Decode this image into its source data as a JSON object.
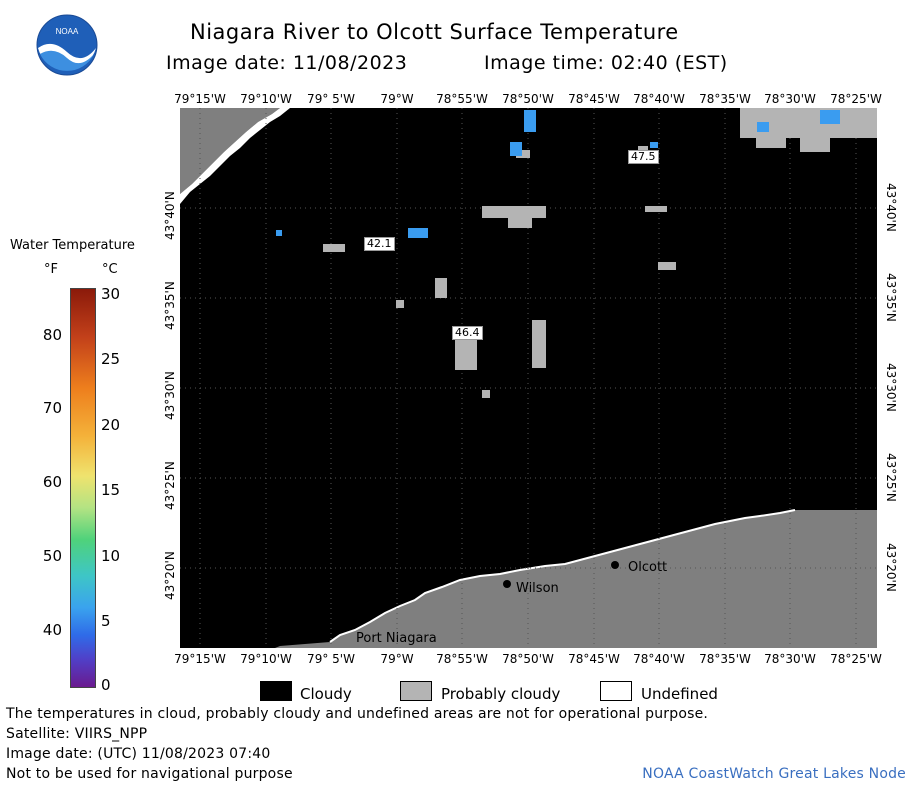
{
  "header": {
    "title": "Niagara River to Olcott Surface Temperature",
    "image_date_label": "Image date: 11/08/2023",
    "image_time_label": "Image time: 02:40 (EST)"
  },
  "logo": {
    "text": "NOAA",
    "icon": "noaa-logo-icon"
  },
  "axes": {
    "lon_labels": [
      "79°15'W",
      "79°10'W",
      "79° 5'W",
      "79°W",
      "78°55'W",
      "78°50'W",
      "78°45'W",
      "78°40'W",
      "78°35'W",
      "78°30'W",
      "78°25'W"
    ],
    "lat_labels": [
      "43°40'N",
      "43°35'N",
      "43°30'N",
      "43°25'N",
      "43°20'N"
    ]
  },
  "legend": {
    "title": "Water Temperature",
    "unit_f": "°F",
    "unit_c": "°C",
    "ticks_f": [
      "80",
      "70",
      "60",
      "50",
      "40"
    ],
    "ticks_c": [
      "30",
      "25",
      "20",
      "15",
      "10",
      "5",
      "0"
    ],
    "range_c": [
      0,
      30
    ],
    "colors": [
      "#6a1a8f",
      "#2f6be8",
      "#3ec6c6",
      "#4fd27b",
      "#efe36e",
      "#ee7f1d",
      "#8b1a0a"
    ]
  },
  "map": {
    "places": [
      "Olcott",
      "Wilson",
      "Port Niagara"
    ],
    "temperature_labels": [
      "47.5",
      "42.1",
      "46.4"
    ],
    "colors": {
      "cloudy": "#000000",
      "probably_cloudy": "#b4b4b4",
      "land": "#7f7f7f",
      "water_temp_blue": "#3a9cf0"
    }
  },
  "key": {
    "cloudy": "Cloudy",
    "probably_cloudy": "Probably cloudy",
    "undefined": "Undefined"
  },
  "footer": {
    "disclaimer": "The temperatures in cloud, probably cloudy and undefined areas are not for operational purpose.",
    "satellite": "Satellite: VIIRS_NPP",
    "utc_date": "Image date: (UTC) 11/08/2023  07:40",
    "navigation": "Not to be used for navigational purpose",
    "credit": "NOAA CoastWatch Great Lakes Node"
  }
}
